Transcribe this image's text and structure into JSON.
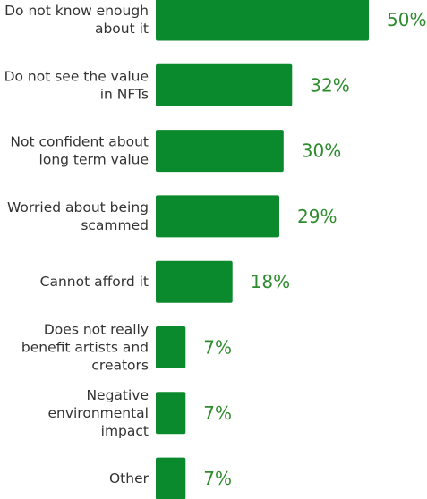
{
  "chart_data": {
    "type": "bar",
    "orientation": "horizontal",
    "categories": [
      [
        "Do not know enough",
        "about it"
      ],
      [
        "Do not see the value",
        "in NFTs"
      ],
      [
        "Not confident about",
        "long term value"
      ],
      [
        "Worried about being",
        "scammed"
      ],
      [
        "Cannot afford it"
      ],
      [
        "Does not really",
        "benefit artists and",
        "creators"
      ],
      [
        "Negative",
        "environmental",
        "impact"
      ],
      [
        "Other"
      ]
    ],
    "values": [
      50,
      32,
      30,
      29,
      18,
      7,
      7,
      7
    ],
    "value_labels": [
      "50%",
      "32%",
      "30%",
      "29%",
      "18%",
      "7%",
      "7%",
      "7%"
    ],
    "xlim": [
      0,
      50
    ],
    "grid": false,
    "colors": {
      "bar": "#0a8a2c",
      "value_label": "#2e8b2e",
      "category_label": "#333333"
    }
  }
}
